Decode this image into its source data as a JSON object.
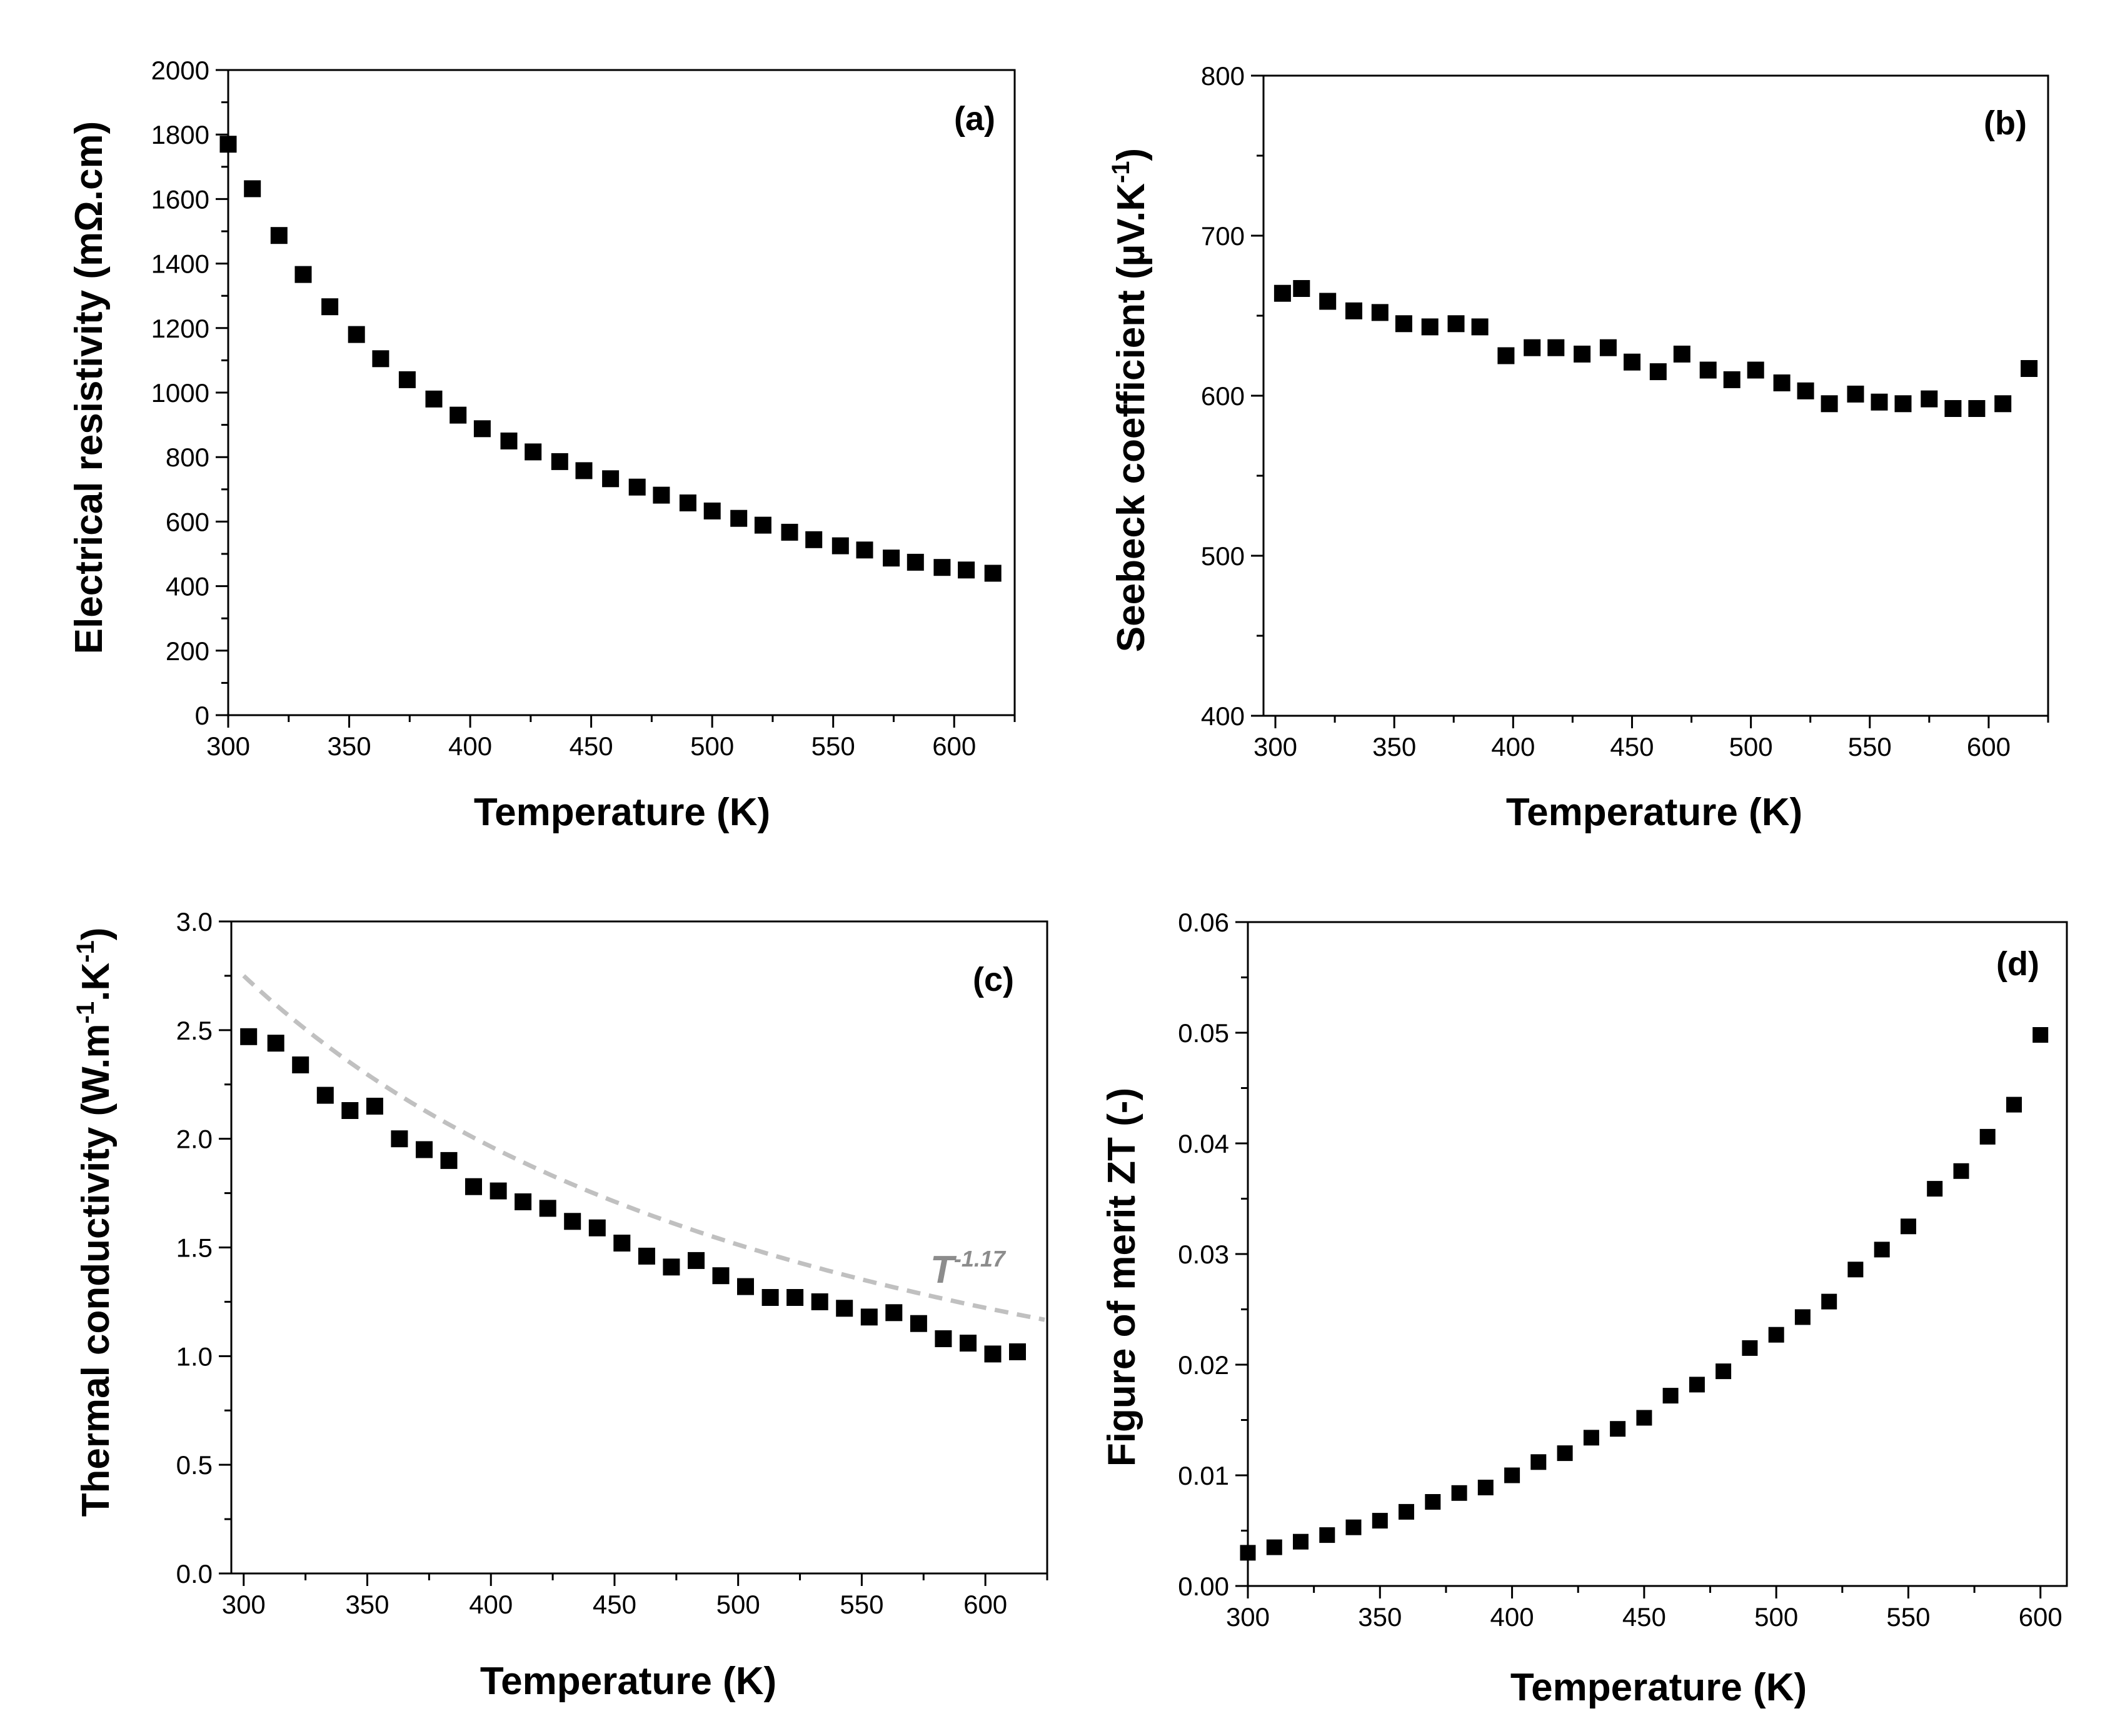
{
  "chart_data": [
    {
      "id": "a",
      "type": "scatter",
      "panel_label": "(a)",
      "xlabel": "Temperature (K)",
      "ylabel": "Electrical resistivity (mΩ.cm)",
      "xlim": [
        300,
        625
      ],
      "ylim": [
        0,
        2000
      ],
      "xticks": [
        300,
        350,
        400,
        450,
        500,
        550,
        600
      ],
      "yticks": [
        0,
        200,
        400,
        600,
        800,
        1000,
        1200,
        1400,
        1600,
        1800,
        2000
      ],
      "marker_color": "#000000",
      "series": [
        {
          "x": [
            300,
            310,
            321,
            331,
            342,
            353,
            363,
            374,
            385,
            395,
            405,
            416,
            426,
            437,
            447,
            458,
            469,
            479,
            490,
            500,
            511,
            521,
            532,
            542,
            553,
            563,
            574,
            584,
            595,
            605,
            616
          ],
          "y": [
            1770,
            1632,
            1487,
            1366,
            1266,
            1180,
            1105,
            1040,
            980,
            930,
            888,
            850,
            816,
            786,
            758,
            733,
            707,
            682,
            658,
            633,
            610,
            589,
            567,
            544,
            525,
            512,
            487,
            474,
            458,
            450,
            440
          ]
        }
      ]
    },
    {
      "id": "b",
      "type": "scatter",
      "panel_label": "(b)",
      "xlabel": "Temperature (K)",
      "ylabel": "Seebeck coefficient (µV.K",
      "ylabel_sup": "-1",
      "ylabel_end": ")",
      "xlim": [
        295,
        625
      ],
      "ylim": [
        400,
        800
      ],
      "xticks": [
        300,
        350,
        400,
        450,
        500,
        550,
        600
      ],
      "yticks": [
        400,
        500,
        600,
        700,
        800
      ],
      "marker_color": "#000000",
      "series": [
        {
          "x": [
            303,
            311,
            322,
            333,
            344,
            354,
            365,
            376,
            386,
            397,
            408,
            418,
            429,
            440,
            450,
            461,
            471,
            482,
            492,
            502,
            513,
            523,
            533,
            544,
            554,
            564,
            575,
            585,
            595,
            606,
            617
          ],
          "y": [
            664,
            667,
            659,
            653,
            652,
            645,
            643,
            645,
            643,
            625,
            630,
            630,
            626,
            630,
            621,
            615,
            626,
            616,
            610,
            616,
            608,
            603,
            595,
            601,
            596,
            595,
            598,
            592,
            592,
            595,
            617
          ]
        }
      ]
    },
    {
      "id": "c",
      "type": "scatter",
      "panel_label": "(c)",
      "xlabel": "Temperature (K)",
      "ylabel": "Thermal conductivity (W.m",
      "ylabel_sup1": "-1",
      "ylabel_mid": ".K",
      "ylabel_sup2": "-1",
      "ylabel_end": ")",
      "xlim": [
        295,
        625
      ],
      "ylim": [
        0,
        3
      ],
      "xticks": [
        300,
        350,
        400,
        450,
        500,
        550,
        600
      ],
      "yticks": [
        0.0,
        0.5,
        1.0,
        1.5,
        2.0,
        2.5,
        3.0
      ],
      "ytick_labels": [
        "0.0",
        "0.5",
        "1.0",
        "1.5",
        "2.0",
        "2.5",
        "3.0"
      ],
      "marker_color": "#000000",
      "fit_color": "#c0c0c0",
      "fit_label": "T",
      "fit_exponent": "-1.17",
      "fit_curve": {
        "exponent": -1.17,
        "x0": 300,
        "y0": 2.75,
        "x_start": 300,
        "x_end": 625
      },
      "series": [
        {
          "x": [
            302,
            313,
            323,
            333,
            343,
            353,
            363,
            373,
            383,
            393,
            403,
            413,
            423,
            433,
            443,
            453,
            463,
            473,
            483,
            493,
            503,
            513,
            523,
            533,
            543,
            553,
            563,
            573,
            583,
            593,
            603,
            613
          ],
          "y": [
            2.47,
            2.44,
            2.34,
            2.2,
            2.13,
            2.15,
            2.0,
            1.95,
            1.9,
            1.78,
            1.76,
            1.71,
            1.68,
            1.62,
            1.59,
            1.52,
            1.46,
            1.41,
            1.44,
            1.37,
            1.32,
            1.27,
            1.27,
            1.25,
            1.22,
            1.18,
            1.2,
            1.15,
            1.08,
            1.06,
            1.01,
            1.02
          ]
        }
      ]
    },
    {
      "id": "d",
      "type": "scatter",
      "panel_label": "(d)",
      "xlabel": "Temperature (K)",
      "ylabel": "Figure of merit ZT (-)",
      "xlim": [
        300,
        610
      ],
      "ylim": [
        0,
        0.06
      ],
      "xticks": [
        300,
        350,
        400,
        450,
        500,
        550,
        600
      ],
      "yticks": [
        0.0,
        0.01,
        0.02,
        0.03,
        0.04,
        0.05,
        0.06
      ],
      "ytick_labels": [
        "0.00",
        "0.01",
        "0.02",
        "0.03",
        "0.04",
        "0.05",
        "0.06"
      ],
      "marker_color": "#000000",
      "series": [
        {
          "x": [
            300,
            310,
            320,
            330,
            340,
            350,
            360,
            370,
            380,
            390,
            400,
            410,
            420,
            430,
            440,
            450,
            460,
            470,
            480,
            490,
            500,
            510,
            520,
            530,
            540,
            550,
            560,
            570,
            580,
            590,
            600
          ],
          "y": [
            0.003,
            0.0035,
            0.004,
            0.0046,
            0.0053,
            0.0059,
            0.0067,
            0.0076,
            0.0084,
            0.0089,
            0.01,
            0.0112,
            0.012,
            0.0134,
            0.0142,
            0.0152,
            0.0172,
            0.0182,
            0.0194,
            0.0215,
            0.0227,
            0.0243,
            0.0257,
            0.0286,
            0.0304,
            0.0325,
            0.0359,
            0.0375,
            0.0406,
            0.0435,
            0.0498
          ]
        }
      ]
    }
  ]
}
